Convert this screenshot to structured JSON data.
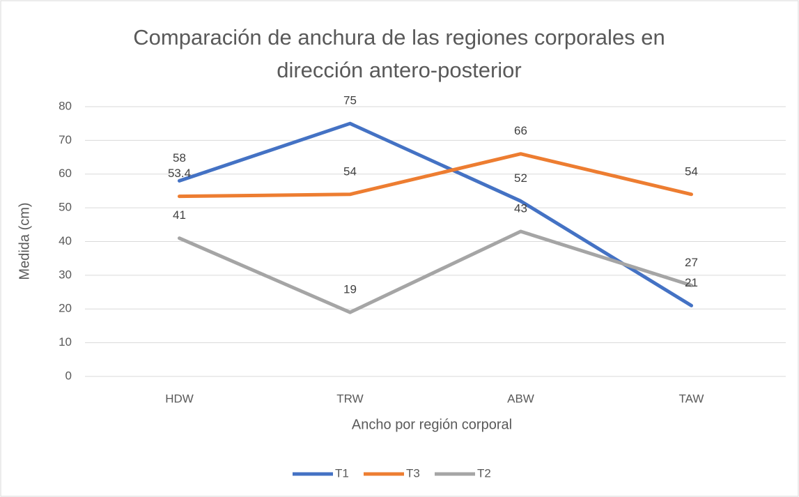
{
  "chart_data": {
    "type": "line",
    "title": [
      "Comparación de anchura de las regiones corporales en",
      "dirección antero-posterior"
    ],
    "x_label": "Ancho por región corporal",
    "y_label": "Medida (cm)",
    "categories": [
      "HDW",
      "TRW",
      "ABW",
      "TAW"
    ],
    "series": [
      {
        "name": "T1",
        "color": "#4472c4",
        "values": [
          58,
          75,
          52,
          21
        ]
      },
      {
        "name": "T3",
        "color": "#ed7d31",
        "values": [
          53.4,
          54,
          66,
          54
        ]
      },
      {
        "name": "T2",
        "color": "#a5a5a5",
        "values": [
          41,
          19,
          43,
          27
        ]
      }
    ],
    "ylim": [
      0,
      80
    ],
    "yticks": [
      0,
      10,
      20,
      30,
      40,
      50,
      60,
      70,
      80
    ],
    "grid": true,
    "legend": "bottom",
    "data_labels": true
  }
}
